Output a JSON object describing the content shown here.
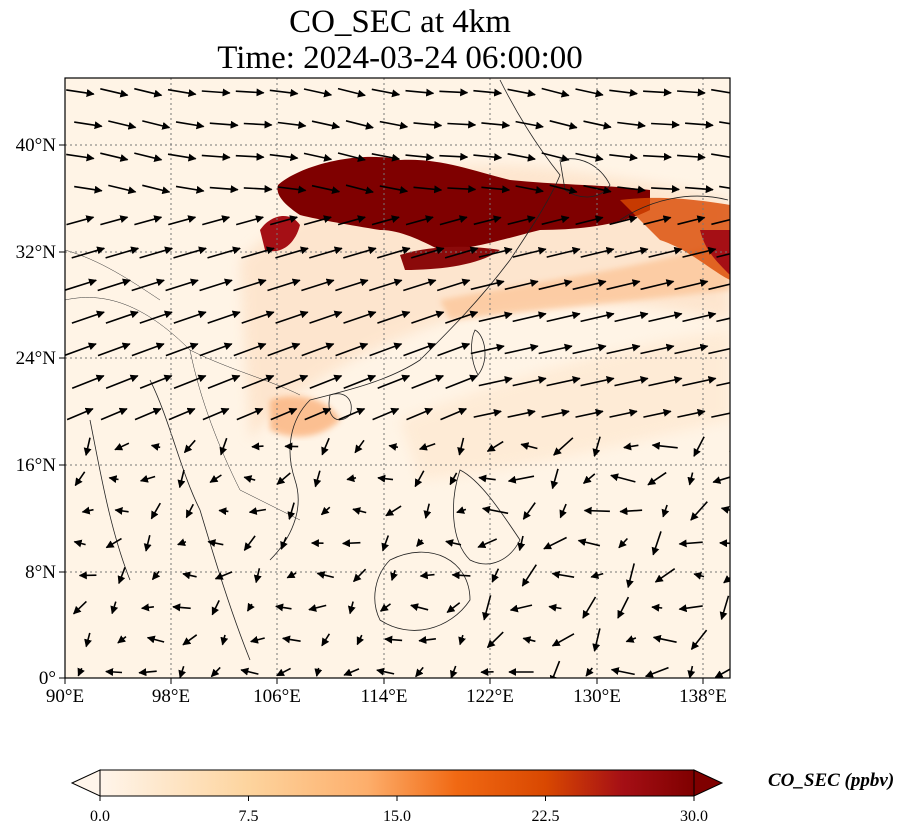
{
  "title": "CO_SEC at 4km",
  "subtitle": "Time: 2024-03-24 06:00:00",
  "lon_ticks": [
    "90°E",
    "98°E",
    "106°E",
    "114°E",
    "122°E",
    "130°E",
    "138°E"
  ],
  "lat_ticks": [
    "40°N",
    "32°N",
    "24°N",
    "16°N",
    "8°N",
    "0°"
  ],
  "colorbar": {
    "label": "CO_SEC (ppbv)",
    "ticks": [
      "0.0",
      "7.5",
      "15.0",
      "22.5",
      "30.0"
    ],
    "min": 0,
    "max": 30,
    "extend": "both",
    "colormap": [
      "#fff5eb",
      "#fdd49e",
      "#fdae6b",
      "#f16913",
      "#d94801",
      "#a50f15",
      "#7f0000"
    ]
  },
  "map": {
    "lon_range": [
      90,
      140
    ],
    "lat_range": [
      0,
      45
    ],
    "gridlines": true,
    "plume_color": "#800000",
    "field": "CO_SEC",
    "height": "4km"
  }
}
